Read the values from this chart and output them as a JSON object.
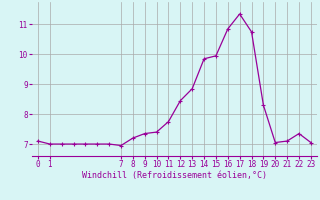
{
  "x": [
    0,
    1,
    2,
    3,
    4,
    5,
    6,
    7,
    8,
    9,
    10,
    11,
    12,
    13,
    14,
    15,
    16,
    17,
    18,
    19,
    20,
    21,
    22,
    23
  ],
  "y": [
    7.1,
    7.0,
    7.0,
    7.0,
    7.0,
    7.0,
    7.0,
    6.95,
    7.2,
    7.35,
    7.4,
    7.75,
    8.45,
    8.85,
    9.85,
    9.95,
    10.85,
    11.35,
    10.75,
    8.3,
    7.05,
    7.1,
    7.35,
    7.05
  ],
  "line_color": "#990099",
  "marker": "+",
  "marker_size": 3.5,
  "marker_linewidth": 0.8,
  "bg_color": "#d8f5f5",
  "grid_color": "#aaaaaa",
  "xlabel": "Windchill (Refroidissement éolien,°C)",
  "xlabel_color": "#990099",
  "xlabel_fontsize": 6.0,
  "tick_color": "#990099",
  "tick_fontsize": 5.5,
  "yticks": [
    7,
    8,
    9,
    10,
    11
  ],
  "xticks": [
    0,
    1,
    7,
    8,
    9,
    10,
    11,
    12,
    13,
    14,
    15,
    16,
    17,
    18,
    19,
    20,
    21,
    22,
    23
  ],
  "ylim": [
    6.6,
    11.75
  ],
  "xlim": [
    -0.5,
    23.5
  ],
  "line_width": 0.9
}
